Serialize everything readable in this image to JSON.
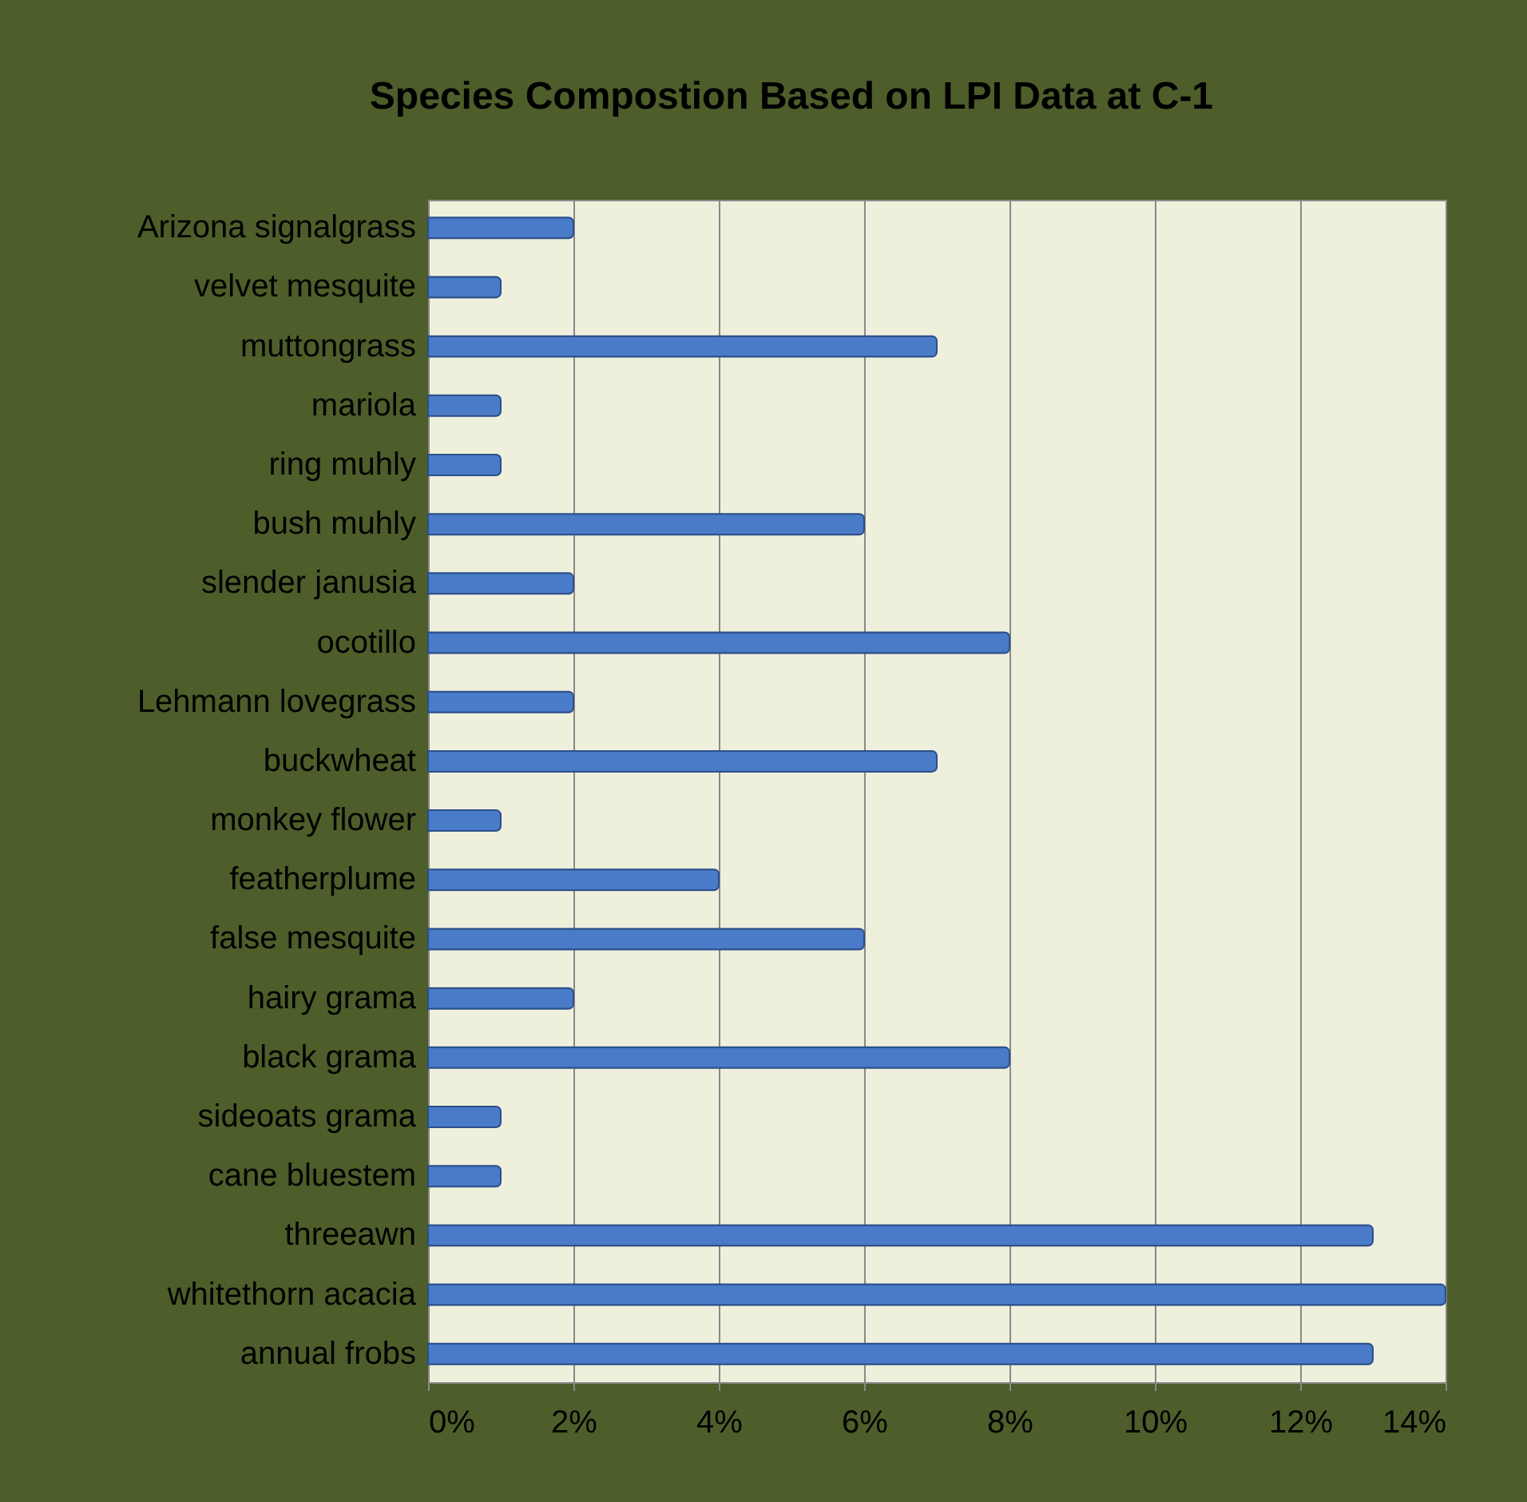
{
  "chart_data": {
    "type": "bar",
    "orientation": "horizontal",
    "title": "Species Compostion Based on LPI Data at C-1",
    "categories": [
      "Arizona signalgrass",
      "velvet mesquite",
      "muttongrass",
      "mariola",
      "ring muhly",
      "bush muhly",
      "slender janusia",
      "ocotillo",
      "Lehmann lovegrass",
      "buckwheat",
      "monkey flower",
      "featherplume",
      "false mesquite",
      "hairy grama",
      "black grama",
      "sideoats grama",
      "cane bluestem",
      "threeawn",
      "whitethorn acacia",
      "annual frobs"
    ],
    "values": [
      2,
      1,
      7,
      1,
      1,
      6,
      2,
      8,
      2,
      7,
      1,
      4,
      6,
      2,
      8,
      1,
      1,
      13,
      14,
      13
    ],
    "color": "#4a7bc8",
    "xlim": [
      0,
      14
    ],
    "xticks": [
      {
        "value": 0,
        "label": "0%"
      },
      {
        "value": 2,
        "label": "2%"
      },
      {
        "value": 4,
        "label": "4%"
      },
      {
        "value": 6,
        "label": "6%"
      },
      {
        "value": 8,
        "label": "8%"
      },
      {
        "value": 10,
        "label": "10%"
      },
      {
        "value": 12,
        "label": "12%"
      },
      {
        "value": 14,
        "label": "14%"
      }
    ],
    "grid": "x"
  }
}
